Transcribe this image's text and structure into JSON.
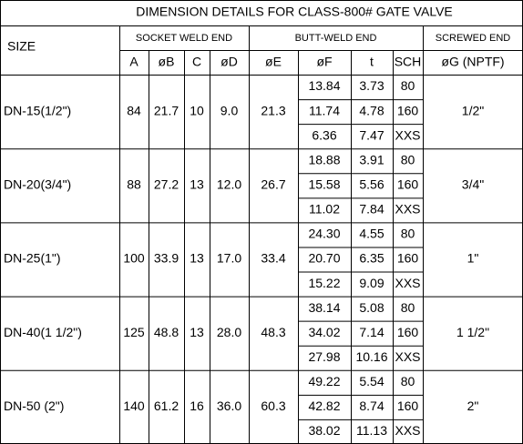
{
  "header": {
    "title": "DIMENSION DETAILS FOR CLASS-800# GATE VALVE",
    "size_label": "SIZE",
    "groups": [
      "SOCKET WELD END",
      "BUTT-WELD END",
      "SCREWED END"
    ],
    "columns": [
      "A",
      "øB",
      "C",
      "øD",
      "øE",
      "øF",
      "t",
      "SCH",
      "øG (NPTF)"
    ]
  },
  "table": {
    "rows": [
      {
        "size": "DN-15(1/2\")",
        "cells": [
          "84",
          "21.7",
          "10",
          "9.0",
          "21.3"
        ],
        "pipes": [
          [
            "13.84",
            "3.73",
            "80"
          ],
          [
            "11.74",
            "4.78",
            "160"
          ],
          [
            "6.36",
            "7.47",
            "XXS"
          ]
        ],
        "thread": "1/2\""
      },
      {
        "size": "DN-20(3/4\")",
        "cells": [
          "88",
          "27.2",
          "13",
          "12.0",
          "26.7"
        ],
        "pipes": [
          [
            "18.88",
            "3.91",
            "80"
          ],
          [
            "15.58",
            "5.56",
            "160"
          ],
          [
            "11.02",
            "7.84",
            "XXS"
          ]
        ],
        "thread": "3/4\""
      },
      {
        "size": "DN-25(1\")",
        "cells": [
          "100",
          "33.9",
          "13",
          "17.0",
          "33.4"
        ],
        "pipes": [
          [
            "24.30",
            "4.55",
            "80"
          ],
          [
            "20.70",
            "6.35",
            "160"
          ],
          [
            "15.22",
            "9.09",
            "XXS"
          ]
        ],
        "thread": "1\""
      },
      {
        "size": "DN-40(1 1/2\")",
        "cells": [
          "125",
          "48.8",
          "13",
          "28.0",
          "48.3"
        ],
        "pipes": [
          [
            "38.14",
            "5.08",
            "80"
          ],
          [
            "34.02",
            "7.14",
            "160"
          ],
          [
            "27.98",
            "10.16",
            "XXS"
          ]
        ],
        "thread": "1 1/2\""
      },
      {
        "size": "DN-50 (2\")",
        "cells": [
          "140",
          "61.2",
          "16",
          "36.0",
          "60.3"
        ],
        "pipes": [
          [
            "49.22",
            "5.54",
            "80"
          ],
          [
            "42.82",
            "8.74",
            "160"
          ],
          [
            "38.02",
            "11.13",
            "XXS"
          ]
        ],
        "thread": "2\""
      }
    ]
  }
}
